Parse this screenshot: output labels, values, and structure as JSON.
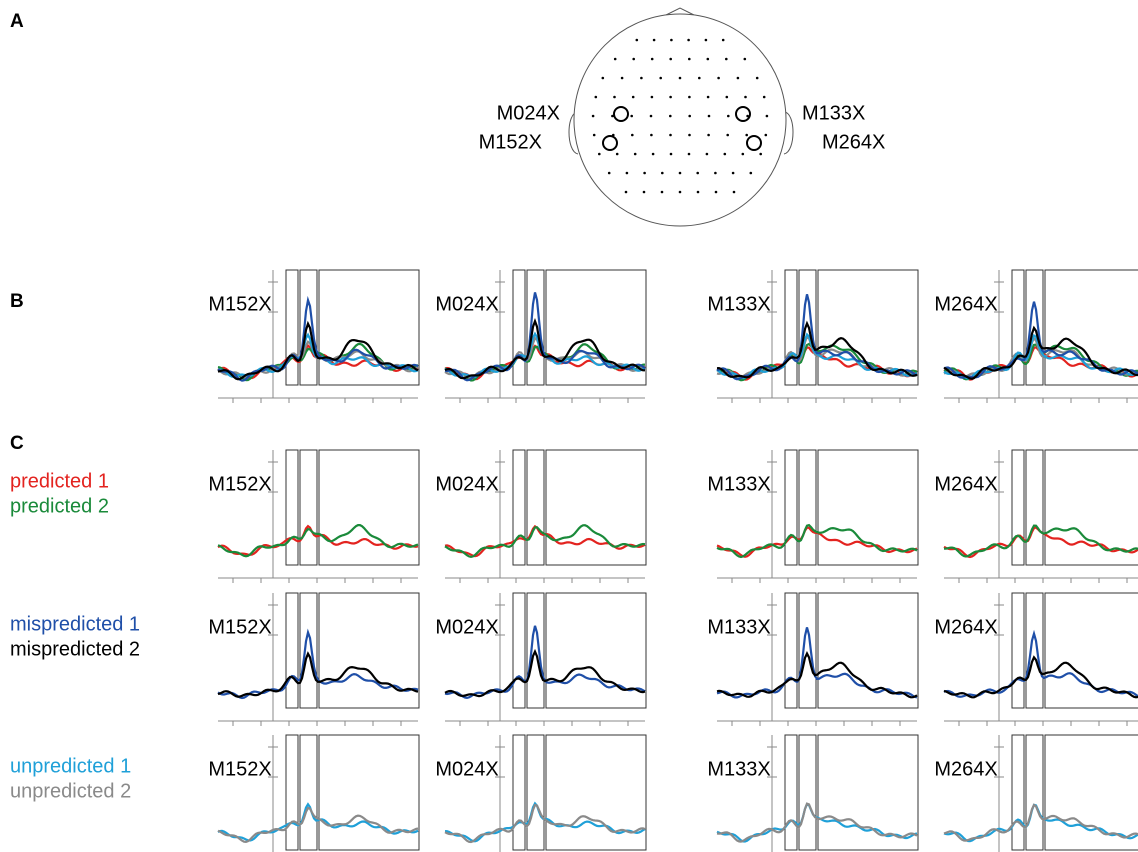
{
  "panel_labels": {
    "a": "A",
    "b": "B",
    "c": "C"
  },
  "sensors": [
    "M152X",
    "M024X",
    "M133X",
    "M264X"
  ],
  "conditions": [
    {
      "label": "predicted 1",
      "color": "#e3231f"
    },
    {
      "label": "predicted 2",
      "color": "#1a8a3a"
    },
    {
      "label": "mispredicted 1",
      "color": "#1f4fa8"
    },
    {
      "label": "mispredicted 2",
      "color": "#000000"
    },
    {
      "label": "unpredicted 1",
      "color": "#1fa0d8"
    },
    {
      "label": "unpredicted 2",
      "color": "#8a8a8a"
    }
  ]
}
